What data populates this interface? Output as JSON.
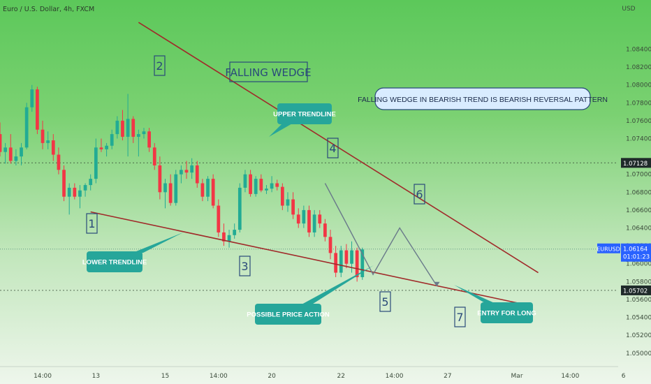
{
  "header": {
    "symbol_line": "Euro / U.S. Dollar, 4h, FXCM",
    "currency": "USD"
  },
  "colors": {
    "up": "#22ab94",
    "down": "#f23645",
    "trendline": "#a02a2a",
    "projection": "#6a7a8a",
    "callout": "#26a69a",
    "price_tag": "#1f2a2a",
    "symbol_tag": "#2962ff"
  },
  "chart_data": {
    "type": "candlestick",
    "title": "Euro / U.S. Dollar, 4h, FXCM",
    "y_axis": {
      "unit": "USD",
      "range": [
        1.0485,
        1.0895
      ],
      "ticks": [
        1.05,
        1.052,
        1.054,
        1.056,
        1.058,
        1.06,
        1.062,
        1.064,
        1.066,
        1.068,
        1.07,
        1.074,
        1.076,
        1.078,
        1.08,
        1.082,
        1.084
      ],
      "tick_labels": [
        "1.05000",
        "1.05200",
        "1.05400",
        "1.05600",
        "1.05800",
        "1.06000",
        "1.06200",
        "1.06400",
        "1.06600",
        "1.06800",
        "1.07000",
        "1.07400",
        "1.07600",
        "1.07800",
        "1.08000",
        "1.08200",
        "1.08400"
      ],
      "price_tags": [
        {
          "value": 1.07128,
          "label": "1.07128"
        },
        {
          "value": 1.06164,
          "label": "1.06164",
          "symbol": "EURUSD",
          "countdown": "01:01:23"
        },
        {
          "value": 1.05702,
          "label": "1.05702"
        }
      ]
    },
    "x_axis": {
      "range": [
        0,
        116
      ],
      "ticks": [
        {
          "t": 8,
          "label": "14:00"
        },
        {
          "t": 18,
          "label": "13"
        },
        {
          "t": 31,
          "label": "15"
        },
        {
          "t": 41,
          "label": "14:00"
        },
        {
          "t": 51,
          "label": "20"
        },
        {
          "t": 64,
          "label": "22"
        },
        {
          "t": 74,
          "label": "14:00"
        },
        {
          "t": 84,
          "label": "27"
        },
        {
          "t": 97,
          "label": "Mar"
        },
        {
          "t": 107,
          "label": "14:00"
        },
        {
          "t": 117,
          "label": "6"
        }
      ]
    },
    "candles": [
      [
        0,
        1.0745,
        1.0758,
        1.072,
        1.0725
      ],
      [
        1,
        1.0725,
        1.0735,
        1.0712,
        1.073
      ],
      [
        2,
        1.073,
        1.0745,
        1.0712,
        1.0715
      ],
      [
        3,
        1.0715,
        1.0728,
        1.071,
        1.072
      ],
      [
        4,
        1.072,
        1.0735,
        1.071,
        1.073
      ],
      [
        5,
        1.073,
        1.078,
        1.0728,
        1.0775
      ],
      [
        6,
        1.0775,
        1.08,
        1.077,
        1.0795
      ],
      [
        7,
        1.0795,
        1.0798,
        1.0745,
        1.075
      ],
      [
        8,
        1.075,
        1.076,
        1.0728,
        1.0735
      ],
      [
        9,
        1.0735,
        1.0748,
        1.0728,
        1.0738
      ],
      [
        10,
        1.0738,
        1.0745,
        1.0715,
        1.0722
      ],
      [
        11,
        1.0722,
        1.073,
        1.07,
        1.0705
      ],
      [
        12,
        1.0705,
        1.071,
        1.067,
        1.0675
      ],
      [
        13,
        1.0675,
        1.069,
        1.0655,
        1.0685
      ],
      [
        14,
        1.0685,
        1.069,
        1.0672,
        1.0675
      ],
      [
        15,
        1.0675,
        1.0688,
        1.0662,
        1.0682
      ],
      [
        16,
        1.0682,
        1.069,
        1.0675,
        1.0688
      ],
      [
        17,
        1.0688,
        1.07,
        1.0682,
        1.0695
      ],
      [
        18,
        1.0695,
        1.074,
        1.069,
        1.073
      ],
      [
        19,
        1.073,
        1.074,
        1.0725,
        1.0728
      ],
      [
        20,
        1.0728,
        1.0735,
        1.072,
        1.0732
      ],
      [
        21,
        1.0732,
        1.075,
        1.0728,
        1.0745
      ],
      [
        22,
        1.0745,
        1.0765,
        1.074,
        1.076
      ],
      [
        23,
        1.076,
        1.0772,
        1.0738,
        1.0742
      ],
      [
        24,
        1.0742,
        1.079,
        1.072,
        1.0762
      ],
      [
        25,
        1.0762,
        1.0765,
        1.0735,
        1.0742
      ],
      [
        26,
        1.0742,
        1.075,
        1.072,
        1.0745
      ],
      [
        27,
        1.0745,
        1.0752,
        1.074,
        1.0748
      ],
      [
        28,
        1.0748,
        1.0752,
        1.0725,
        1.073
      ],
      [
        29,
        1.073,
        1.0735,
        1.0705,
        1.071
      ],
      [
        30,
        1.071,
        1.072,
        1.0672,
        1.068
      ],
      [
        31,
        1.068,
        1.0695,
        1.0662,
        1.069
      ],
      [
        32,
        1.069,
        1.07,
        1.0665,
        1.0668
      ],
      [
        33,
        1.0668,
        1.0705,
        1.0665,
        1.07
      ],
      [
        34,
        1.07,
        1.071,
        1.069,
        1.0705
      ],
      [
        35,
        1.0705,
        1.0715,
        1.0695,
        1.0702
      ],
      [
        36,
        1.0702,
        1.0718,
        1.0695,
        1.071
      ],
      [
        37,
        1.071,
        1.0715,
        1.0685,
        1.069
      ],
      [
        38,
        1.069,
        1.0695,
        1.067,
        1.0675
      ],
      [
        39,
        1.0675,
        1.0698,
        1.067,
        1.0695
      ],
      [
        40,
        1.0695,
        1.07,
        1.0662,
        1.0665
      ],
      [
        41,
        1.0665,
        1.0672,
        1.063,
        1.0635
      ],
      [
        42,
        1.0635,
        1.0645,
        1.062,
        1.0625
      ],
      [
        43,
        1.0625,
        1.0638,
        1.0618,
        1.0632
      ],
      [
        44,
        1.0632,
        1.0645,
        1.0628,
        1.0638
      ],
      [
        45,
        1.0638,
        1.069,
        1.0635,
        1.0685
      ],
      [
        46,
        1.0685,
        1.0705,
        1.068,
        1.07
      ],
      [
        47,
        1.07,
        1.0705,
        1.0675,
        1.0678
      ],
      [
        48,
        1.0678,
        1.0698,
        1.0675,
        1.0695
      ],
      [
        49,
        1.0695,
        1.07,
        1.068,
        1.0682
      ],
      [
        50,
        1.0682,
        1.0688,
        1.0678,
        1.0684
      ],
      [
        51,
        1.0684,
        1.0698,
        1.068,
        1.069
      ],
      [
        52,
        1.069,
        1.0694,
        1.0682,
        1.0686
      ],
      [
        53,
        1.0686,
        1.069,
        1.066,
        1.0665
      ],
      [
        54,
        1.0665,
        1.068,
        1.0658,
        1.0672
      ],
      [
        55,
        1.0672,
        1.068,
        1.065,
        1.0655
      ],
      [
        56,
        1.0655,
        1.0662,
        1.064,
        1.0645
      ],
      [
        57,
        1.0645,
        1.0665,
        1.064,
        1.066
      ],
      [
        58,
        1.066,
        1.0665,
        1.063,
        1.0635
      ],
      [
        59,
        1.0635,
        1.066,
        1.063,
        1.0655
      ],
      [
        60,
        1.0655,
        1.066,
        1.064,
        1.0645
      ],
      [
        61,
        1.0645,
        1.065,
        1.0625,
        1.063
      ],
      [
        62,
        1.063,
        1.0638,
        1.0605,
        1.0612
      ],
      [
        63,
        1.0612,
        1.062,
        1.0585,
        1.059
      ],
      [
        64,
        1.059,
        1.062,
        1.0585,
        1.0615
      ],
      [
        65,
        1.0615,
        1.0622,
        1.0595,
        1.06
      ],
      [
        66,
        1.06,
        1.0625,
        1.059,
        1.0615
      ],
      [
        67,
        1.0615,
        1.0618,
        1.058,
        1.0585
      ],
      [
        68,
        1.0585,
        1.0618,
        1.0582,
        1.0616
      ]
    ],
    "trendlines": [
      {
        "name": "upper",
        "from": [
          26,
          1.087
        ],
        "to": [
          101,
          1.059
        ]
      },
      {
        "name": "lower",
        "from": [
          17,
          1.0658
        ],
        "to": [
          98,
          1.0555
        ]
      }
    ],
    "projection_path": [
      [
        61,
        1.069
      ],
      [
        65,
        1.0645
      ],
      [
        70,
        1.0588
      ],
      [
        75,
        1.064
      ],
      [
        82,
        1.0575
      ]
    ],
    "horizontal_lines": [
      1.07128,
      1.06164,
      1.05702
    ],
    "annotations": {
      "pattern_title": "FALLING WEDGE",
      "note": "FALLING WEDGE IN BEARISH TREND IS BEARISH REVERSAL PATTERN",
      "upper_trendline": "UPPER TRENDLINE",
      "lower_trendline": "LOWER TRENDLINE",
      "possible_price_action": "POSSIBLE PRICE ACTION",
      "entry": "ENTRY FOR LONG",
      "points": [
        "1",
        "2",
        "3",
        "4",
        "5",
        "6",
        "7"
      ]
    }
  }
}
